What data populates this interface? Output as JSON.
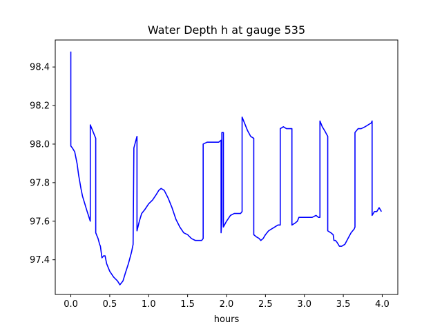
{
  "chart_data": {
    "type": "line",
    "title": "Water Depth h at gauge 535",
    "xlabel": "hours",
    "ylabel": "",
    "xlim": [
      -0.2,
      4.2
    ],
    "ylim": [
      97.22,
      98.54
    ],
    "xticks": [
      0.0,
      0.5,
      1.0,
      1.5,
      2.0,
      2.5,
      3.0,
      3.5,
      4.0
    ],
    "xtick_labels": [
      "0.0",
      "0.5",
      "1.0",
      "1.5",
      "2.0",
      "2.5",
      "3.0",
      "3.5",
      "4.0"
    ],
    "yticks": [
      97.4,
      97.6,
      97.8,
      98.0,
      98.2,
      98.4
    ],
    "ytick_labels": [
      "97.4",
      "97.6",
      "97.8",
      "98.0",
      "98.2",
      "98.4"
    ],
    "grid": false,
    "line_color": "#0000ff",
    "series": [
      {
        "x": [
          0.0,
          0.0,
          0.02,
          0.05,
          0.08,
          0.1,
          0.13,
          0.15,
          0.18,
          0.21,
          0.25,
          0.25,
          0.28,
          0.32,
          0.32,
          0.35,
          0.37,
          0.38,
          0.4,
          0.42,
          0.44,
          0.46,
          0.5,
          0.55,
          0.6,
          0.63,
          0.65,
          0.67,
          0.7,
          0.74,
          0.78,
          0.8,
          0.81,
          0.85,
          0.85,
          0.88,
          0.91,
          0.95,
          1.0,
          1.05,
          1.1,
          1.13,
          1.16,
          1.2,
          1.25,
          1.3,
          1.35,
          1.4,
          1.45,
          1.5,
          1.55,
          1.6,
          1.65,
          1.68,
          1.7,
          1.7,
          1.75,
          1.8,
          1.85,
          1.9,
          1.93,
          1.93,
          1.94,
          1.94,
          1.96,
          1.96,
          2.0,
          2.05,
          2.1,
          2.15,
          2.18,
          2.2,
          2.2,
          2.23,
          2.27,
          2.31,
          2.35,
          2.35,
          2.38,
          2.42,
          2.44,
          2.47,
          2.5,
          2.54,
          2.58,
          2.62,
          2.66,
          2.69,
          2.69,
          2.73,
          2.77,
          2.81,
          2.84,
          2.84,
          2.88,
          2.91,
          2.93,
          2.95,
          2.99,
          3.05,
          3.1,
          3.15,
          3.18,
          3.2,
          3.2,
          3.23,
          3.26,
          3.3,
          3.3,
          3.34,
          3.37,
          3.38,
          3.4,
          3.42,
          3.45,
          3.48,
          3.52,
          3.56,
          3.6,
          3.64,
          3.65,
          3.65,
          3.69,
          3.73,
          3.78,
          3.82,
          3.86,
          3.87,
          3.87,
          3.9,
          3.93,
          3.96,
          3.99
        ],
        "y": [
          98.48,
          97.99,
          97.98,
          97.96,
          97.9,
          97.84,
          97.77,
          97.73,
          97.69,
          97.65,
          97.6,
          98.1,
          98.07,
          98.03,
          97.54,
          97.51,
          97.48,
          97.47,
          97.41,
          97.42,
          97.42,
          97.38,
          97.34,
          97.31,
          97.29,
          97.27,
          97.28,
          97.29,
          97.33,
          97.38,
          97.44,
          97.48,
          97.98,
          98.04,
          97.55,
          97.6,
          97.64,
          97.66,
          97.69,
          97.71,
          97.74,
          97.76,
          97.77,
          97.76,
          97.72,
          97.67,
          97.61,
          97.57,
          97.54,
          97.53,
          97.51,
          97.5,
          97.5,
          97.5,
          97.51,
          98.0,
          98.01,
          98.01,
          98.01,
          98.01,
          98.02,
          97.54,
          97.6,
          98.06,
          98.06,
          97.57,
          97.6,
          97.63,
          97.64,
          97.64,
          97.64,
          97.65,
          98.14,
          98.11,
          98.07,
          98.04,
          98.03,
          97.53,
          97.52,
          97.51,
          97.5,
          97.51,
          97.53,
          97.55,
          97.56,
          97.57,
          97.58,
          97.58,
          98.08,
          98.09,
          98.08,
          98.08,
          98.08,
          97.58,
          97.59,
          97.6,
          97.62,
          97.62,
          97.62,
          97.62,
          97.62,
          97.63,
          97.62,
          97.62,
          98.12,
          98.09,
          98.07,
          98.04,
          97.55,
          97.54,
          97.53,
          97.5,
          97.5,
          97.49,
          97.47,
          97.47,
          97.48,
          97.51,
          97.54,
          97.56,
          97.57,
          98.06,
          98.08,
          98.08,
          98.09,
          98.1,
          98.11,
          98.12,
          97.63,
          97.65,
          97.65,
          97.67,
          97.65
        ]
      }
    ]
  }
}
